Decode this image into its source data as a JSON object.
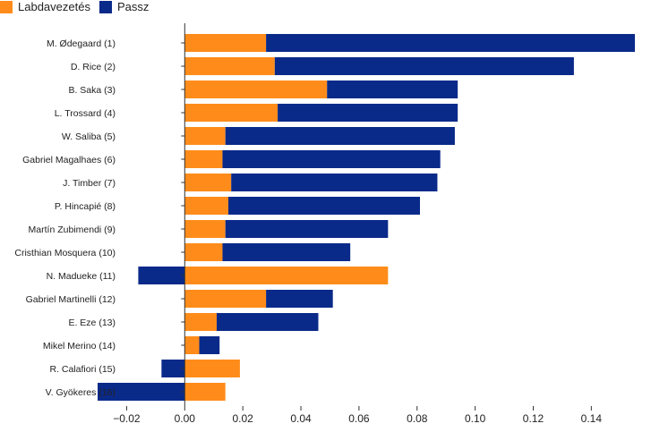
{
  "chart_data": {
    "type": "bar",
    "orientation": "horizontal",
    "stacked": true,
    "categories": [
      "M. Ødegaard (1)",
      "D. Rice (2)",
      "B. Saka (3)",
      "L. Trossard (4)",
      "W. Saliba (5)",
      "Gabriel Magalhaes (6)",
      "J. Timber (7)",
      "P. Hincapié (8)",
      "Martín Zubimendi (9)",
      "Cristhian Mosquera (10)",
      "N. Madueke (11)",
      "Gabriel Martinelli (12)",
      "E. Eze (13)",
      "Mikel Merino (14)",
      "R. Calafiori (15)",
      "V. Gyökeres (16)"
    ],
    "series": [
      {
        "name": "Labdavezetés",
        "color": "#ff8c1a",
        "values": [
          0.028,
          0.031,
          0.049,
          0.032,
          0.014,
          0.013,
          0.016,
          0.015,
          0.014,
          0.013,
          0.07,
          0.028,
          0.011,
          0.005,
          0.019,
          0.014
        ]
      },
      {
        "name": "Passz",
        "color": "#0a2a8a",
        "values": [
          0.127,
          0.103,
          0.045,
          0.062,
          0.079,
          0.075,
          0.071,
          0.066,
          0.056,
          0.044,
          -0.016,
          0.023,
          0.035,
          0.007,
          -0.008,
          -0.03
        ]
      }
    ],
    "xlim": [
      -0.03,
      0.155
    ],
    "xticks": [
      -0.02,
      0.0,
      0.02,
      0.04,
      0.06,
      0.08,
      0.1,
      0.12,
      0.14
    ],
    "xtick_labels": [
      "−0.02",
      "0.00",
      "0.02",
      "0.04",
      "0.06",
      "0.08",
      "0.10",
      "0.12",
      "0.14"
    ],
    "title": "",
    "xlabel": "",
    "ylabel": "",
    "grid": false,
    "legend_position": "top-left"
  }
}
